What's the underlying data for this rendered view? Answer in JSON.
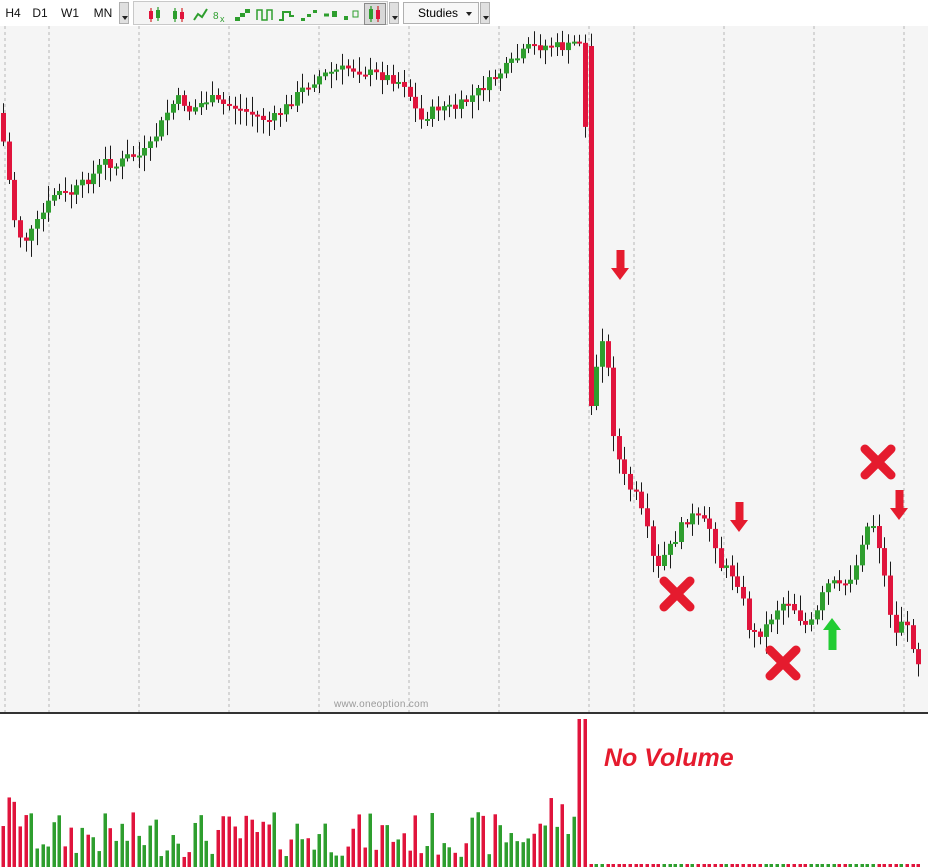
{
  "toolbar": {
    "timeframes": [
      "H4",
      "D1",
      "W1",
      "MN"
    ],
    "chart_type_icons": [
      "candlestick-icon",
      "candlestick-filled-icon",
      "candlestick-hollow-icon",
      "renko-icon",
      "point-figure-icon",
      "step-line-icon",
      "line-break-icon",
      "kagi-icon",
      "area-line-icon",
      "dots-icon",
      "tick-icon",
      "bar-ohlc-icon",
      "candle-selected-icon"
    ],
    "studies_label": "Studies"
  },
  "chart": {
    "watermark": "www.oneoption.com",
    "annotation_text": "No Volume",
    "bull_color": "#2e9e2e",
    "bear_color": "#e0143c",
    "markers": [
      {
        "type": "down-arrow",
        "color": "#e51b2e"
      },
      {
        "type": "down-arrow",
        "color": "#e51b2e"
      },
      {
        "type": "down-arrow",
        "color": "#e51b2e"
      },
      {
        "type": "up-arrow",
        "color": "#22cc33"
      },
      {
        "type": "cross",
        "color": "#e51b2e"
      },
      {
        "type": "cross",
        "color": "#e51b2e"
      },
      {
        "type": "cross",
        "color": "#e51b2e"
      }
    ]
  }
}
